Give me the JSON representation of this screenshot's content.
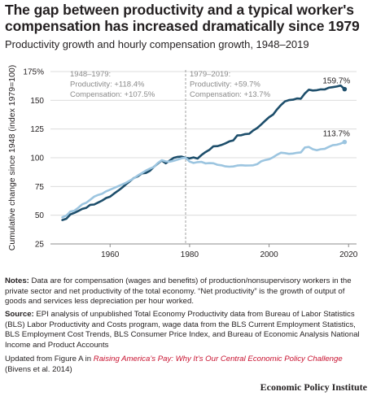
{
  "title": "The gap between productivity and a typical worker's compensation has increased dramatically since 1979",
  "subtitle": "Productivity growth and hourly compensation growth, 1948–2019",
  "notes": {
    "notes_label": "Notes:",
    "notes_text": "Data are for compensation (wages and benefits) of production/nonsupervisory workers in the private sector and net productivity of the total economy. “Net productivity” is the growth of output of goods and services less depreciation per hour worked.",
    "source_label": "Source:",
    "source_text": "EPI analysis of unpublished Total Economy Productivity data from Bureau of Labor Statistics (BLS) Labor Productivity and Costs program, wage data from the BLS Current Employment Statistics, BLS Employment Cost Trends, BLS Consumer Price Index, and Bureau of Economic Analysis National Income and Product Accounts",
    "updated_prefix": "Updated from Figure A in ",
    "updated_title": "Raising America’s Pay: Why It’s Our Central Economic Policy Challenge",
    "updated_suffix": "(Bivens et al. 2014)"
  },
  "logo": "Economic Policy Institute",
  "colors": {
    "productivity": "#1d4e6b",
    "compensation": "#9cc5e0",
    "grid": "#dcdcdc",
    "annotation_text": "#8a8a8a",
    "divider": "#a0a0a0",
    "link": "#c8102e"
  },
  "chart_data": {
    "type": "line",
    "ylabel": "Cumulative change since 1948 (index 1979=100)",
    "xlabel": "",
    "xlim": [
      1945,
      2022
    ],
    "ylim": [
      25,
      175
    ],
    "xticks": [
      1960,
      1980,
      2000,
      2020
    ],
    "yticks": [
      25,
      50,
      75,
      100,
      125,
      150,
      175
    ],
    "ytick_labels": [
      "25",
      "50",
      "75",
      "100",
      "125",
      "150",
      "175%"
    ],
    "divider_x": 1979,
    "grid": "horizontal",
    "annotations": [
      {
        "lines": [
          "1948–1979:",
          "Productivity: +118.4%",
          "Compensation: +107.5%"
        ]
      },
      {
        "lines": [
          "1979–2019:",
          "Productivity: +59.7%",
          "Compensation: +13.7%"
        ]
      }
    ],
    "end_labels": [
      "159.7%",
      "113.7%"
    ],
    "series": [
      {
        "key": "productivity",
        "x": [
          1948,
          1949,
          1950,
          1951,
          1952,
          1953,
          1954,
          1955,
          1956,
          1957,
          1958,
          1959,
          1960,
          1961,
          1962,
          1963,
          1964,
          1965,
          1966,
          1967,
          1968,
          1969,
          1970,
          1971,
          1972,
          1973,
          1974,
          1975,
          1976,
          1977,
          1978,
          1979,
          1980,
          1981,
          1982,
          1983,
          1984,
          1985,
          1986,
          1987,
          1988,
          1989,
          1990,
          1991,
          1992,
          1993,
          1994,
          1995,
          1996,
          1997,
          1998,
          1999,
          2000,
          2001,
          2002,
          2003,
          2004,
          2005,
          2006,
          2007,
          2008,
          2009,
          2010,
          2011,
          2012,
          2013,
          2014,
          2015,
          2016,
          2017,
          2018,
          2019
        ],
        "values": [
          45.8,
          46.9,
          50.7,
          52.0,
          53.7,
          55.5,
          56.4,
          59.0,
          59.3,
          61.0,
          62.8,
          65.0,
          66.1,
          68.8,
          71.3,
          73.9,
          76.9,
          79.6,
          82.4,
          83.9,
          86.4,
          86.8,
          88.6,
          92.1,
          94.9,
          97.6,
          95.2,
          97.6,
          99.9,
          100.8,
          101.0,
          100.0,
          99.4,
          100.3,
          99.3,
          102.4,
          104.9,
          106.9,
          110.0,
          110.1,
          111.1,
          112.5,
          114.2,
          115.1,
          119.4,
          119.6,
          120.6,
          120.9,
          123.7,
          125.8,
          128.9,
          132.2,
          135.3,
          137.6,
          142.0,
          145.9,
          149.0,
          150.2,
          150.5,
          151.6,
          151.4,
          156.0,
          159.2,
          158.5,
          158.8,
          159.5,
          159.4,
          160.9,
          161.4,
          162.0,
          162.8,
          159.7
        ]
      },
      {
        "key": "compensation",
        "x": [
          1948,
          1949,
          1950,
          1951,
          1952,
          1953,
          1954,
          1955,
          1956,
          1957,
          1958,
          1959,
          1960,
          1961,
          1962,
          1963,
          1964,
          1965,
          1966,
          1967,
          1968,
          1969,
          1970,
          1971,
          1972,
          1973,
          1974,
          1975,
          1976,
          1977,
          1978,
          1979,
          1980,
          1981,
          1982,
          1983,
          1984,
          1985,
          1986,
          1987,
          1988,
          1989,
          1990,
          1991,
          1992,
          1993,
          1994,
          1995,
          1996,
          1997,
          1998,
          1999,
          2000,
          2001,
          2002,
          2003,
          2004,
          2005,
          2006,
          2007,
          2008,
          2009,
          2010,
          2011,
          2012,
          2013,
          2014,
          2015,
          2016,
          2017,
          2018,
          2019
        ],
        "values": [
          48.2,
          49.7,
          53.2,
          53.9,
          56.5,
          59.5,
          60.8,
          63.4,
          66.2,
          67.7,
          68.7,
          70.8,
          72.2,
          73.7,
          75.2,
          76.7,
          78.2,
          80.2,
          82.2,
          84.6,
          86.6,
          88.8,
          90.5,
          91.9,
          95.3,
          97.9,
          96.8,
          96.6,
          97.4,
          98.4,
          99.6,
          100.0,
          96.7,
          95.5,
          96.2,
          96.4,
          95.1,
          95.3,
          95.2,
          93.9,
          93.4,
          92.5,
          92.2,
          92.4,
          93.2,
          93.5,
          93.2,
          93.3,
          93.4,
          94.4,
          96.9,
          98.0,
          98.7,
          100.4,
          102.6,
          104.4,
          104.0,
          103.4,
          103.7,
          104.3,
          104.7,
          108.9,
          109.4,
          107.4,
          106.5,
          107.4,
          107.7,
          109.4,
          110.9,
          111.3,
          112.3,
          113.7
        ]
      }
    ]
  }
}
